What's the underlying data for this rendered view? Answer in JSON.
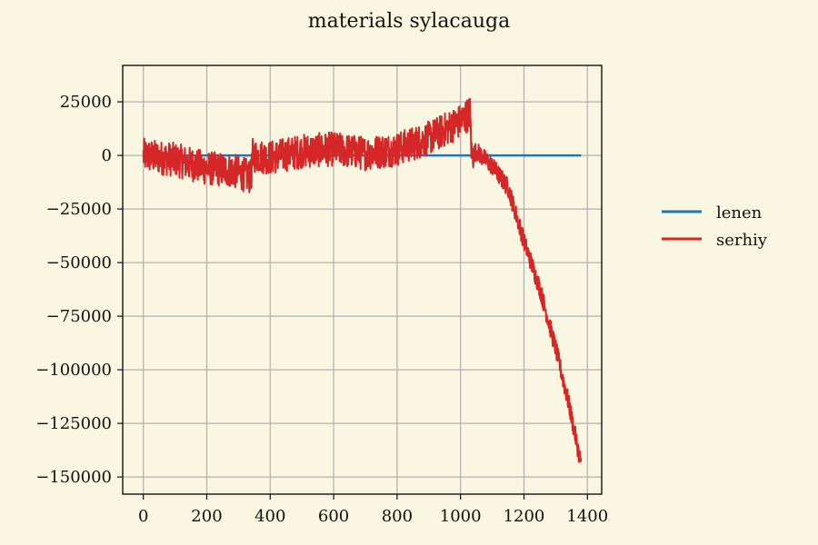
{
  "chart_data": {
    "type": "line",
    "title": "materials sylacauga",
    "xlabel": "",
    "ylabel": "",
    "xlim": [
      -65,
      1445
    ],
    "ylim": [
      -158000,
      42000
    ],
    "xticks": [
      0,
      200,
      400,
      600,
      800,
      1000,
      1200,
      1400
    ],
    "yticks": [
      25000,
      0,
      -25000,
      -50000,
      -75000,
      -100000,
      -125000,
      -150000
    ],
    "xtick_labels": [
      "0",
      "200",
      "400",
      "600",
      "800",
      "1000",
      "1200",
      "1400"
    ],
    "ytick_labels": [
      "25000",
      "0",
      "−25000",
      "−50000",
      "−75000",
      "−100000",
      "−125000",
      "−150000"
    ],
    "grid": true,
    "legend_position": "outside-right",
    "series": [
      {
        "name": "lenen",
        "color": "#1f77b4",
        "x": [
          0,
          200,
          400,
          600,
          800,
          1000,
          1100,
          1200,
          1300,
          1380
        ],
        "y": [
          0,
          0,
          0,
          0,
          0,
          0,
          0,
          0,
          0,
          0
        ]
      },
      {
        "name": "serhiy",
        "color": "#d62728",
        "noise": 8000,
        "x": [
          0,
          100,
          200,
          280,
          340,
          345,
          400,
          500,
          600,
          700,
          800,
          900,
          950,
          1000,
          1030,
          1035,
          1050,
          1100,
          1150,
          1200,
          1250,
          1300,
          1340,
          1380
        ],
        "y": [
          0,
          -2000,
          -6000,
          -7000,
          -10000,
          0,
          -1000,
          2000,
          3000,
          1000,
          3000,
          8000,
          12000,
          16000,
          20000,
          0,
          2000,
          -5000,
          -15000,
          -40000,
          -62000,
          -90000,
          -115000,
          -144000
        ]
      }
    ]
  }
}
